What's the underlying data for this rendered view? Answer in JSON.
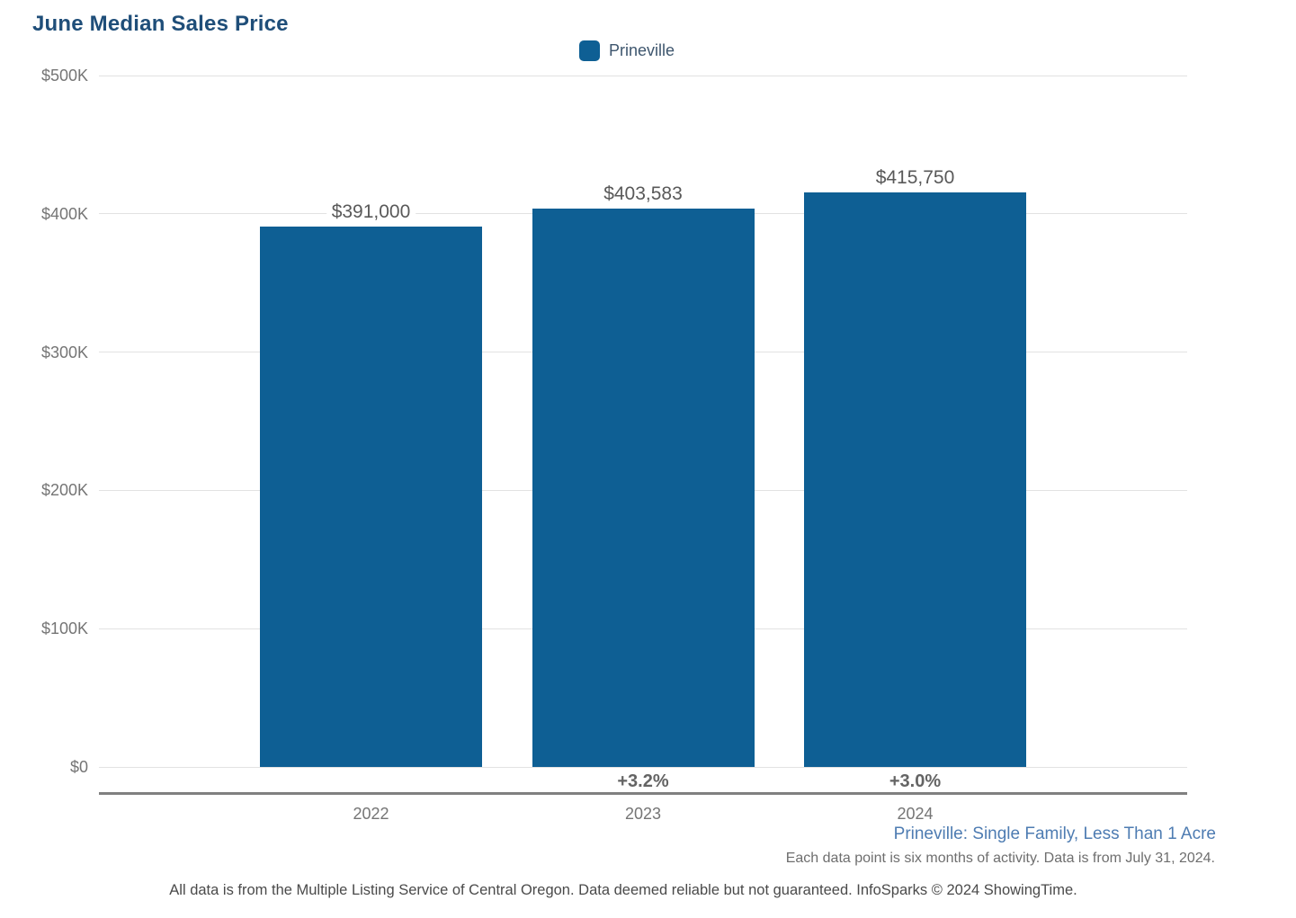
{
  "title": "June Median Sales Price",
  "legend": {
    "label": "Prineville"
  },
  "colors": {
    "bar": "#0E5F94",
    "title": "#1F4E79",
    "caption_blue": "#4E7CB2",
    "gridline": "#e2e2e2",
    "axis_line": "#808080"
  },
  "chart_data": {
    "type": "bar",
    "title": "June Median Sales Price",
    "series_name": "Prineville",
    "categories": [
      "2022",
      "2023",
      "2024"
    ],
    "values": [
      391000,
      403583,
      415750
    ],
    "value_labels": [
      "$391,000",
      "$403,583",
      "$415,750"
    ],
    "pct_change_labels": [
      "",
      "+3.2%",
      "+3.0%"
    ],
    "xlabel": "",
    "ylabel": "",
    "ylim": [
      0,
      500000
    ],
    "y_tick_values": [
      0,
      100000,
      200000,
      300000,
      400000,
      500000
    ],
    "y_tick_labels": [
      "$0",
      "$100K",
      "$200K",
      "$300K",
      "$400K",
      "$500K"
    ],
    "grid": true,
    "legend_position": "top-center",
    "bar_color": "#0E5F94"
  },
  "footer": {
    "series_caption": "Prineville: Single Family, Less Than 1 Acre",
    "data_note": "Each data point is six months of activity. Data is from July 31, 2024.",
    "disclaimer": "All data is from the Multiple Listing Service of Central Oregon. Data deemed reliable but not guaranteed. InfoSparks © 2024 ShowingTime."
  }
}
